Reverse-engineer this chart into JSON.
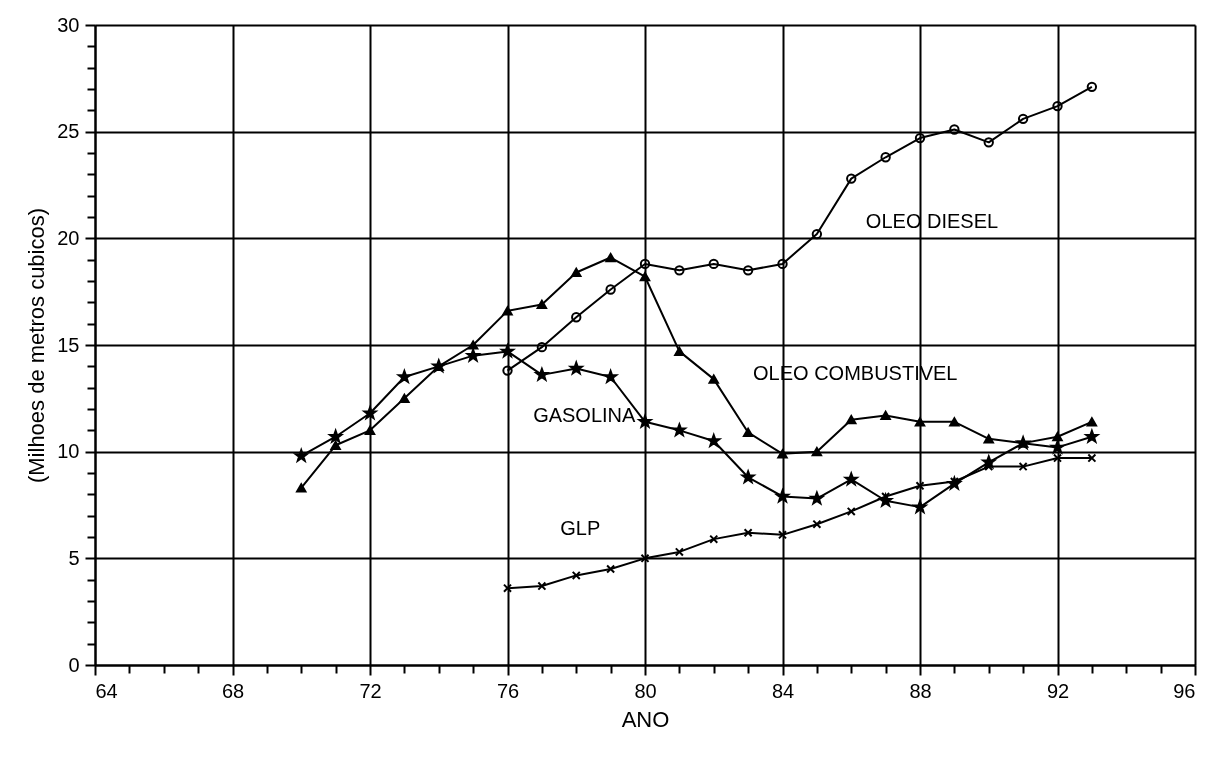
{
  "chart_data": {
    "type": "line",
    "xlabel": "ANO",
    "ylabel": "(Milhoes de metros cubicos)",
    "xlim": [
      64,
      96
    ],
    "ylim": [
      0,
      30
    ],
    "xticks": [
      64,
      {
        "value": 65,
        "label": null
      },
      {
        "value": 66,
        "label": null
      },
      {
        "value": 67,
        "label": null
      },
      68,
      {
        "value": 69,
        "label": null
      },
      {
        "value": 70,
        "label": null
      },
      {
        "value": 71,
        "label": null
      },
      72,
      {
        "value": 73,
        "label": null
      },
      {
        "value": 74,
        "label": null
      },
      {
        "value": 75,
        "label": null
      },
      76,
      {
        "value": 77,
        "label": null
      },
      {
        "value": 78,
        "label": null
      },
      {
        "value": 79,
        "label": null
      },
      80,
      {
        "value": 81,
        "label": null
      },
      {
        "value": 82,
        "label": null
      },
      {
        "value": 83,
        "label": null
      },
      84,
      {
        "value": 85,
        "label": null
      },
      {
        "value": 86,
        "label": null
      },
      {
        "value": 87,
        "label": null
      },
      88,
      {
        "value": 89,
        "label": null
      },
      {
        "value": 90,
        "label": null
      },
      {
        "value": 91,
        "label": null
      },
      92,
      {
        "value": 93,
        "label": null
      },
      {
        "value": 94,
        "label": null
      },
      {
        "value": 95,
        "label": null
      },
      96
    ],
    "yticks": [
      0,
      {
        "value": 1,
        "label": null
      },
      {
        "value": 2,
        "label": null
      },
      {
        "value": 3,
        "label": null
      },
      {
        "value": 4,
        "label": null
      },
      5,
      {
        "value": 6,
        "label": null
      },
      {
        "value": 7,
        "label": null
      },
      {
        "value": 8,
        "label": null
      },
      {
        "value": 9,
        "label": null
      },
      10,
      {
        "value": 11,
        "label": null
      },
      {
        "value": 12,
        "label": null
      },
      {
        "value": 13,
        "label": null
      },
      {
        "value": 14,
        "label": null
      },
      15,
      {
        "value": 16,
        "label": null
      },
      {
        "value": 17,
        "label": null
      },
      {
        "value": 18,
        "label": null
      },
      {
        "value": 19,
        "label": null
      },
      20,
      {
        "value": 21,
        "label": null
      },
      {
        "value": 22,
        "label": null
      },
      {
        "value": 23,
        "label": null
      },
      {
        "value": 24,
        "label": null
      },
      25,
      {
        "value": 26,
        "label": null
      },
      {
        "value": 27,
        "label": null
      },
      {
        "value": 28,
        "label": null
      },
      {
        "value": 29,
        "label": null
      },
      30
    ],
    "grid": true,
    "line_style": "solid",
    "series": [
      {
        "name": "OLEO DIESEL",
        "color": "#000000",
        "marker": "circle",
        "x": [
          76,
          77,
          78,
          79,
          80,
          81,
          82,
          83,
          84,
          85,
          86,
          87,
          88,
          89,
          90,
          91,
          92,
          93
        ],
        "values": [
          13.8,
          14.9,
          16.3,
          17.6,
          18.8,
          18.5,
          18.8,
          18.5,
          18.8,
          20.2,
          22.8,
          23.8,
          24.7,
          25.1,
          24.5,
          25.6,
          26.2,
          27.1
        ]
      },
      {
        "name": "OLEO COMBUSTIVEL",
        "color": "#000000",
        "marker": "triangle",
        "x": [
          70,
          71,
          72,
          73,
          74,
          75,
          76,
          77,
          78,
          79,
          80,
          81,
          82,
          83,
          84,
          85,
          86,
          87,
          88,
          89,
          90,
          91,
          92,
          93
        ],
        "values": [
          8.3,
          10.3,
          11.0,
          12.5,
          14.0,
          15.0,
          16.6,
          16.9,
          18.4,
          19.1,
          18.2,
          14.7,
          13.4,
          10.9,
          9.9,
          10.0,
          11.5,
          11.7,
          11.4,
          11.4,
          10.6,
          10.4,
          10.7,
          11.4
        ]
      },
      {
        "name": "GASOLINA",
        "color": "#000000",
        "marker": "star",
        "x": [
          70,
          71,
          72,
          73,
          74,
          75,
          76,
          77,
          78,
          79,
          80,
          81,
          82,
          83,
          84,
          85,
          86,
          87,
          88,
          89,
          90,
          91,
          92,
          93
        ],
        "values": [
          9.8,
          10.7,
          11.8,
          13.5,
          14.0,
          14.5,
          14.7,
          13.6,
          13.9,
          13.5,
          11.4,
          11.0,
          10.5,
          8.8,
          7.9,
          7.8,
          8.7,
          7.7,
          7.4,
          8.5,
          9.5,
          10.4,
          10.2,
          10.7
        ]
      },
      {
        "name": "GLP",
        "color": "#000000",
        "marker": "cross",
        "x": [
          76,
          77,
          78,
          79,
          80,
          81,
          82,
          83,
          84,
          85,
          86,
          87,
          88,
          89,
          90,
          91,
          92,
          93
        ],
        "values": [
          3.6,
          3.7,
          4.2,
          4.5,
          5.0,
          5.3,
          5.9,
          6.2,
          6.1,
          6.6,
          7.2,
          7.9,
          8.4,
          8.6,
          9.3,
          9.3,
          9.7,
          9.7
        ]
      }
    ]
  }
}
